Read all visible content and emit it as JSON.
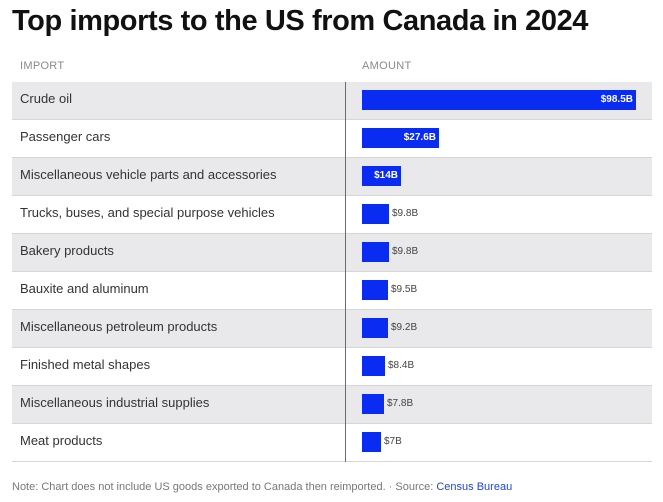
{
  "title": "Top imports to the US from Canada in 2024",
  "headers": {
    "import": "IMPORT",
    "amount": "AMOUNT"
  },
  "chart_data": {
    "type": "bar",
    "orientation": "horizontal",
    "categories": [
      "Crude oil",
      "Passenger cars",
      "Miscellaneous vehicle parts and accessories",
      "Trucks, buses, and special purpose vehicles",
      "Bakery products",
      "Bauxite and aluminum",
      "Miscellaneous petroleum products",
      "Finished metal shapes",
      "Miscellaneous industrial supplies",
      "Meat products"
    ],
    "values": [
      98.5,
      27.6,
      14,
      9.8,
      9.8,
      9.5,
      9.2,
      8.4,
      7.8,
      7
    ],
    "labels": [
      "$98.5B",
      "$27.6B",
      "$14B",
      "$9.8B",
      "$9.8B",
      "$9.5B",
      "$9.2B",
      "$8.4B",
      "$7.8B",
      "$7B"
    ],
    "unit": "billion USD",
    "xlim": [
      0,
      98.5
    ],
    "bar_color": "#0a2cf2"
  },
  "footnote": {
    "text": "Note: Chart does not include US goods exported to Canada then reimported. · Source: ",
    "source_link": "Census Bureau"
  }
}
